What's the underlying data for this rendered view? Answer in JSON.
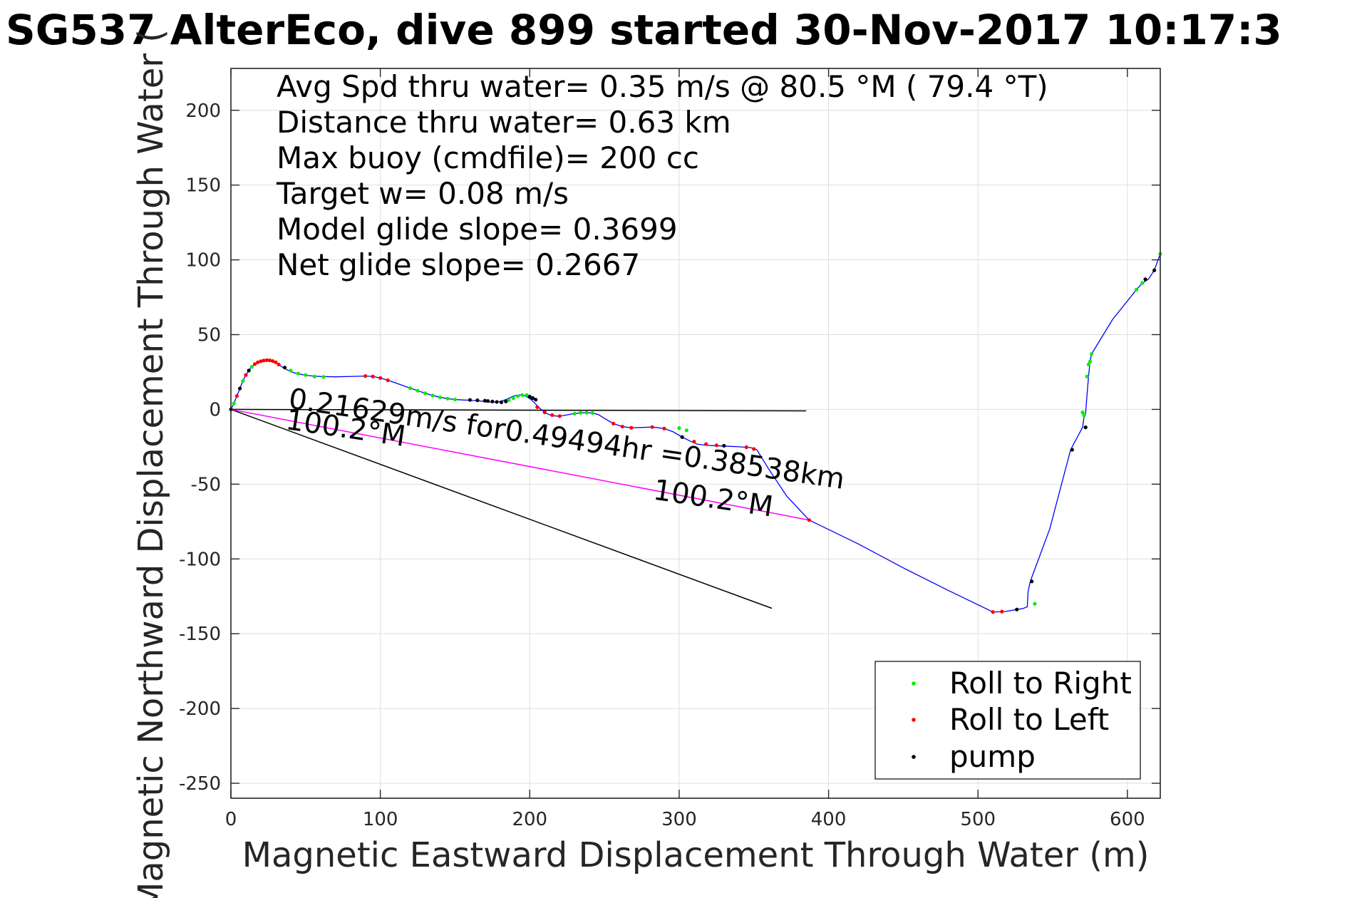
{
  "chart_data": {
    "type": "line",
    "title": "SG537 AlterEco, dive 899 started 30-Nov-2017 10:17:3",
    "xlabel": "Magnetic Eastward Displacement Through Water (m)",
    "ylabel": "Magnetic Northward Displacement Through Water (",
    "xlim": [
      0,
      622
    ],
    "ylim": [
      -260,
      228
    ],
    "xticks": [
      0,
      100,
      200,
      300,
      400,
      500,
      600
    ],
    "yticks": [
      -250,
      -200,
      -150,
      -100,
      -50,
      0,
      50,
      100,
      150,
      200
    ],
    "grid": true,
    "info_lines": [
      "Avg Spd thru water=  0.35 m/s @  80.5 °M ( 79.4 °T)",
      "Distance thru water=  0.63 km",
      "Max buoy (cmdfile)= 200 cc",
      "Target w= 0.08 m/s",
      "Model glide slope= 0.3699",
      "Net glide slope= 0.2667"
    ],
    "legend": {
      "position": "bottom-right",
      "entries": [
        {
          "label": "Roll to Right",
          "color": "#00ee00"
        },
        {
          "label": "Roll to Left",
          "color": "#ff0000"
        },
        {
          "label": "pump",
          "color": "#000000"
        }
      ]
    },
    "annotations": [
      {
        "text": "0.21629m/s for0.49494hr =0.38538km",
        "x": 38,
        "y": 1,
        "angle_deg": 8.3
      },
      {
        "text": "100.2°M",
        "x": 36,
        "y": -13,
        "angle_deg": 8.3
      },
      {
        "text": "100.2°M",
        "x": 282,
        "y": -60,
        "angle_deg": 8.3
      }
    ],
    "reference_lines": [
      {
        "name": "east",
        "color": "#000000",
        "x": [
          0,
          385
        ],
        "y": [
          0,
          -1
        ]
      },
      {
        "name": "heading",
        "color": "#000000",
        "x": [
          0,
          362
        ],
        "y": [
          0,
          -133
        ]
      },
      {
        "name": "net",
        "color": "#ff00ff",
        "x": [
          0,
          387
        ],
        "y": [
          0,
          -74
        ]
      }
    ],
    "series": [
      {
        "color": "#0000ff",
        "x": [
          0,
          2,
          4,
          6,
          8,
          10,
          12,
          14,
          16,
          18,
          20,
          22,
          24,
          26,
          28,
          30,
          32,
          34,
          37,
          40,
          44,
          48,
          52,
          56,
          60,
          70,
          80,
          90,
          95,
          100,
          105,
          110,
          115,
          120,
          125,
          130,
          135,
          140,
          145,
          150,
          155,
          160,
          165,
          170,
          175,
          180,
          183,
          186,
          189,
          192,
          195,
          198,
          201,
          204,
          207,
          210,
          213,
          216,
          219,
          222,
          226,
          230,
          234,
          238,
          242,
          246,
          250,
          256,
          262,
          268,
          275,
          282,
          290,
          296,
          302,
          308,
          312,
          318,
          325,
          332,
          340,
          348,
          352,
          360,
          372,
          387,
          420,
          450,
          480,
          510,
          518,
          526,
          530,
          533,
          533.5,
          535,
          548,
          562,
          570,
          571,
          572,
          573,
          574,
          575,
          576,
          590,
          606,
          610,
          614,
          618,
          622
        ],
        "y": [
          0,
          4,
          9,
          14,
          19,
          23,
          26,
          28.5,
          30.3,
          31.5,
          32.2,
          32.7,
          32.9,
          32.8,
          32.3,
          31.5,
          30,
          28.5,
          26.8,
          25.2,
          24,
          23.2,
          22.6,
          22.2,
          22,
          21.8,
          22,
          22.3,
          22,
          21,
          19.5,
          17.8,
          16,
          14.2,
          12.5,
          10.8,
          9.3,
          8.1,
          7.2,
          6.6,
          6.3,
          6.1,
          5.8,
          5.3,
          4.8,
          5.2,
          6.2,
          7.5,
          8.8,
          9.6,
          9.6,
          8.5,
          6.5,
          3.5,
          0.5,
          -2,
          -3.5,
          -4.3,
          -4.5,
          -4.2,
          -3.5,
          -2.8,
          -2.3,
          -2.2,
          -2.4,
          -3.5,
          -6,
          -9.5,
          -11.5,
          -12.3,
          -12.1,
          -11.8,
          -12.8,
          -15,
          -18.5,
          -21.5,
          -23.2,
          -24,
          -24.3,
          -24.6,
          -25,
          -25.6,
          -27,
          -40,
          -58,
          -74,
          -90,
          -106,
          -121,
          -135.5,
          -135.2,
          -133.8,
          -133.2,
          -132,
          -122,
          -115,
          -80,
          -27,
          -12,
          -5,
          -3,
          10,
          22,
          32,
          37,
          60,
          80,
          84.5,
          87,
          93,
          104
        ]
      },
      {
        "name": "Roll to Right",
        "color": "#00ee00",
        "x": [
          2,
          8,
          14,
          40,
          45,
          50,
          56,
          62,
          120,
          125,
          130,
          135,
          140,
          145,
          150,
          186,
          189,
          192,
          195,
          198,
          230,
          234,
          238,
          242,
          300,
          305,
          538,
          570,
          571,
          572,
          573,
          574,
          575,
          576,
          606,
          610,
          622
        ],
        "y": [
          4,
          19,
          28.5,
          26,
          24,
          23,
          22,
          21.7,
          14.2,
          12.5,
          10.8,
          9.3,
          8.1,
          7.2,
          6.6,
          6.2,
          7.5,
          8.8,
          9.6,
          9.6,
          -2.8,
          -2.3,
          -2.2,
          -2.4,
          -12.5,
          -14,
          -130,
          -2,
          -4,
          -12,
          22,
          30,
          32,
          37,
          80,
          84.5,
          104
        ]
      },
      {
        "name": "Roll to Left",
        "color": "#ff0000",
        "x": [
          4,
          10,
          16,
          18,
          20,
          22,
          24,
          26,
          28,
          30,
          32,
          90,
          95,
          100,
          105,
          205,
          210,
          215,
          220,
          256,
          262,
          268,
          282,
          290,
          310,
          318,
          325,
          345,
          350,
          387,
          510,
          516
        ],
        "y": [
          9,
          23,
          30.3,
          31.5,
          32.2,
          32.7,
          32.9,
          32.8,
          32.3,
          31.5,
          30,
          22.3,
          22,
          21,
          19.5,
          1.5,
          -2,
          -3.8,
          -4.5,
          -9.5,
          -11.5,
          -12.3,
          -11.8,
          -12.8,
          -21.5,
          -23.2,
          -24,
          -25.3,
          -26.5,
          -74,
          -135.5,
          -135.2
        ]
      },
      {
        "name": "pump",
        "color": "#000000",
        "x": [
          0,
          6,
          12,
          36,
          160,
          165,
          170,
          172,
          175,
          178,
          181,
          184,
          200,
          202,
          204,
          302,
          330,
          526,
          536,
          563,
          572,
          612,
          618
        ],
        "y": [
          0,
          14,
          26,
          28,
          6.3,
          6.1,
          5.8,
          5.6,
          5.3,
          5,
          4.8,
          5.3,
          8.5,
          7.6,
          6.5,
          -18.5,
          -24.3,
          -133.8,
          -115,
          -27,
          -12,
          87,
          93
        ]
      }
    ]
  }
}
